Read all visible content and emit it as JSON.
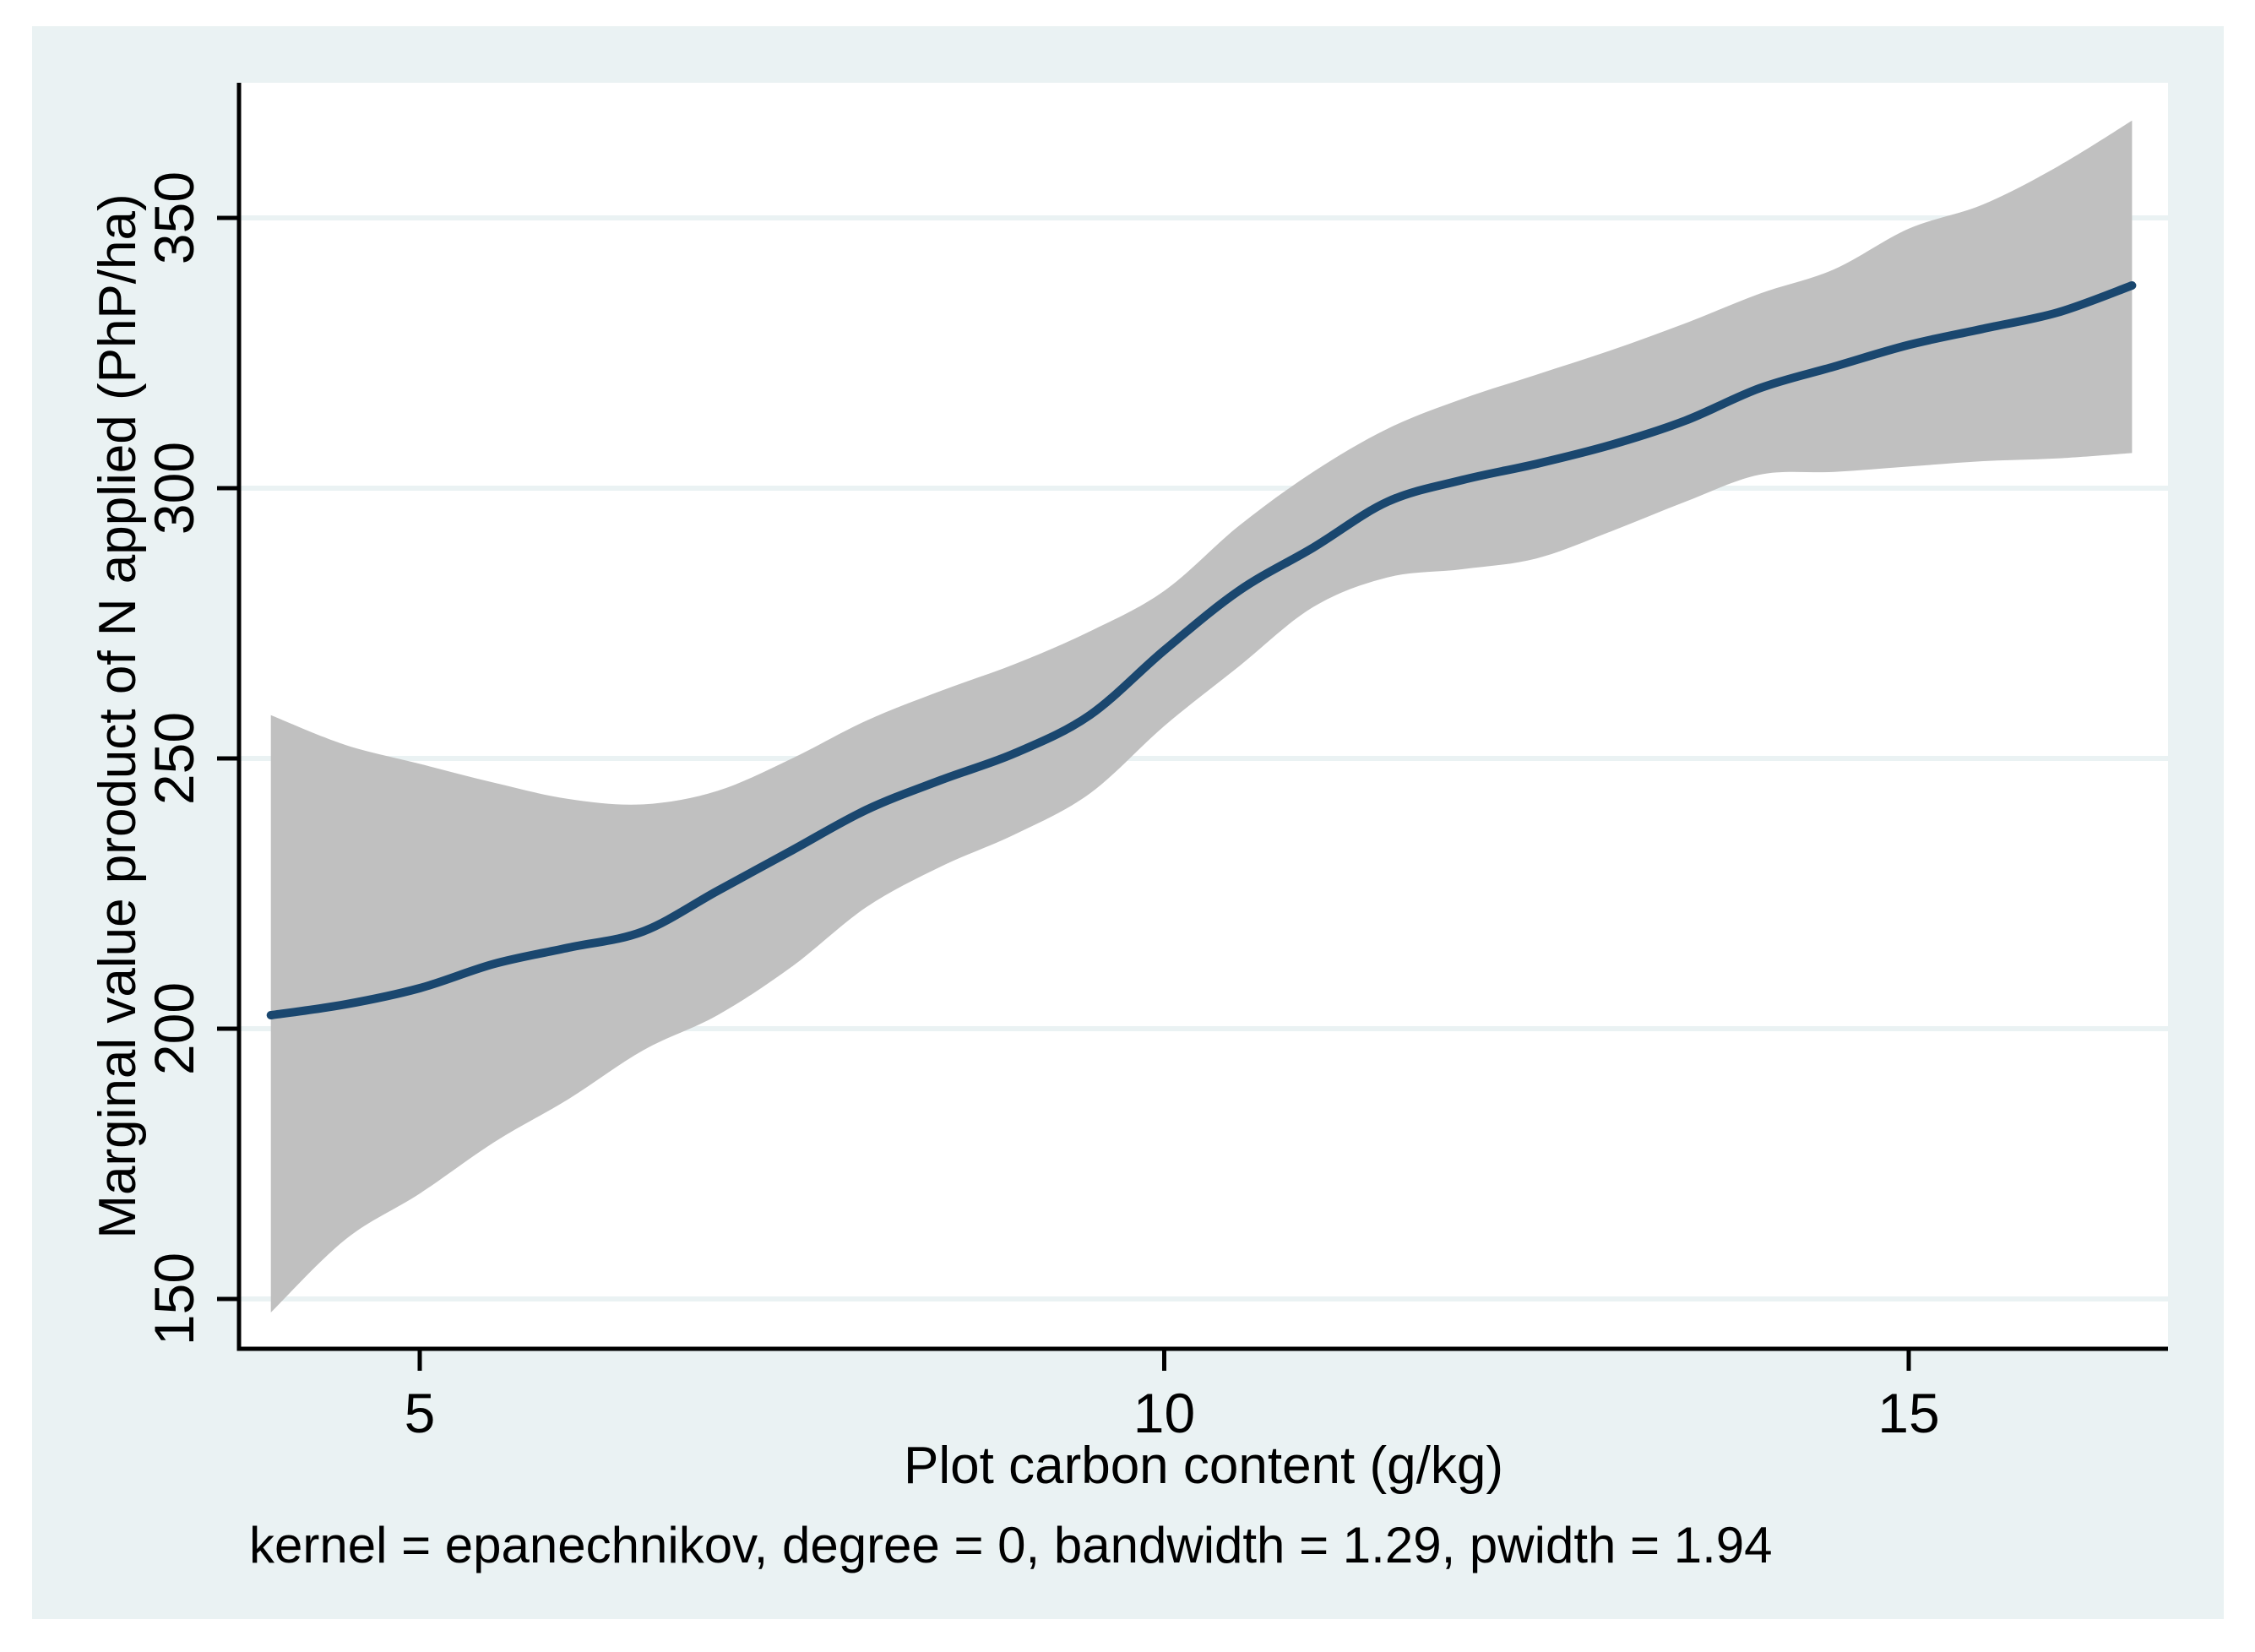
{
  "chart_data": {
    "type": "line",
    "title": "",
    "xlabel": "Plot carbon content (g/kg)",
    "ylabel": "Marginal value product of N applied (PhP/ha)",
    "note": "kernel = epanechnikov, degree = 0, bandwidth = 1.29, pwidth = 1.94",
    "x_ticks": [
      5,
      10,
      15
    ],
    "y_ticks": [
      150,
      200,
      250,
      300,
      350
    ],
    "xlim": [
      3.79,
      16.74
    ],
    "ylim": [
      141,
      375
    ],
    "grid": "horizontal",
    "legend_position": "none",
    "x": [
      4.0,
      4.5,
      5.0,
      5.5,
      6.0,
      6.5,
      7.0,
      7.5,
      8.0,
      8.5,
      9.0,
      9.5,
      10.0,
      10.5,
      11.0,
      11.5,
      12.0,
      12.5,
      13.0,
      13.5,
      14.0,
      14.5,
      15.0,
      15.5,
      16.0,
      16.5
    ],
    "series": [
      {
        "name": "lpoly smooth",
        "role": "line",
        "values": [
          202.5,
          204.5,
          207.5,
          212,
          215,
          218,
          225.5,
          233,
          240.5,
          246,
          251,
          258,
          270,
          281,
          289,
          297.5,
          301.5,
          304.5,
          308,
          312.5,
          318.5,
          322.5,
          326.5,
          329.5,
          332.5,
          337.5
        ]
      },
      {
        "name": "CI upper",
        "role": "band-upper",
        "values": [
          258,
          252.5,
          249,
          245.5,
          242.5,
          241.5,
          244,
          250,
          257,
          262.5,
          267.5,
          273.5,
          281,
          293,
          303,
          311,
          316.5,
          321,
          325.5,
          330.5,
          336,
          340.5,
          348,
          352.5,
          359.5,
          368
        ]
      },
      {
        "name": "CI lower",
        "role": "band-lower",
        "values": [
          147.5,
          161,
          169.5,
          179,
          187,
          196,
          202.5,
          211.5,
          222.5,
          230,
          236,
          243.5,
          256,
          267,
          278,
          283.5,
          285,
          287,
          292,
          297.5,
          302.5,
          303,
          304,
          305,
          305.5,
          306.5
        ]
      }
    ],
    "colors": {
      "line": "#1a476f",
      "band": "#c0c0c0",
      "graph_background": "#eaf2f3",
      "plot_background": "#ffffff",
      "gridline": "#eaf2f3",
      "axis": "#000000",
      "text": "#000000"
    }
  }
}
